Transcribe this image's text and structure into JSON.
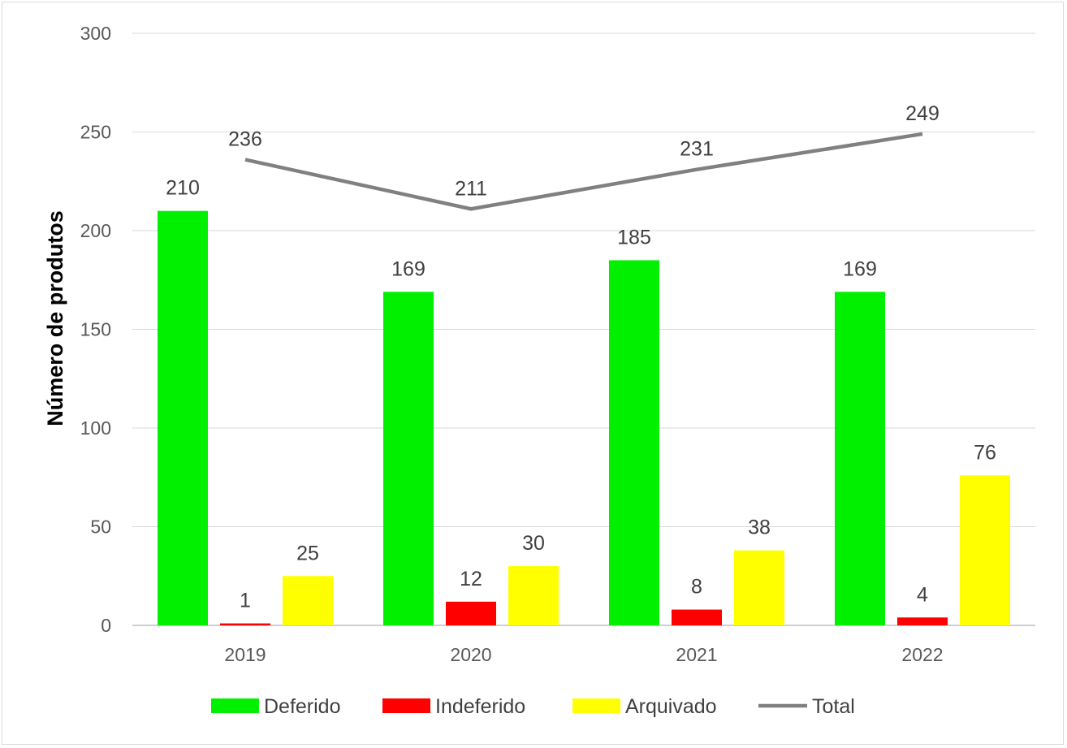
{
  "chart_data": {
    "type": "bar",
    "title": "",
    "xlabel": "",
    "ylabel": "Número de produtos",
    "ylim": [
      0,
      300
    ],
    "yticks": [
      0,
      50,
      100,
      150,
      200,
      250,
      300
    ],
    "grid": true,
    "legend_position": "bottom",
    "categories": [
      "2019",
      "2020",
      "2021",
      "2022"
    ],
    "series": [
      {
        "name": "Deferido",
        "kind": "bar",
        "color": "#00f000",
        "values": [
          210,
          169,
          185,
          169
        ]
      },
      {
        "name": "Indeferido",
        "kind": "bar",
        "color": "#ff0000",
        "values": [
          1,
          12,
          8,
          4
        ]
      },
      {
        "name": "Arquivado",
        "kind": "bar",
        "color": "#ffff00",
        "values": [
          25,
          30,
          38,
          76
        ]
      },
      {
        "name": "Total",
        "kind": "line",
        "color": "#808080",
        "values": [
          236,
          211,
          231,
          249
        ]
      }
    ]
  }
}
